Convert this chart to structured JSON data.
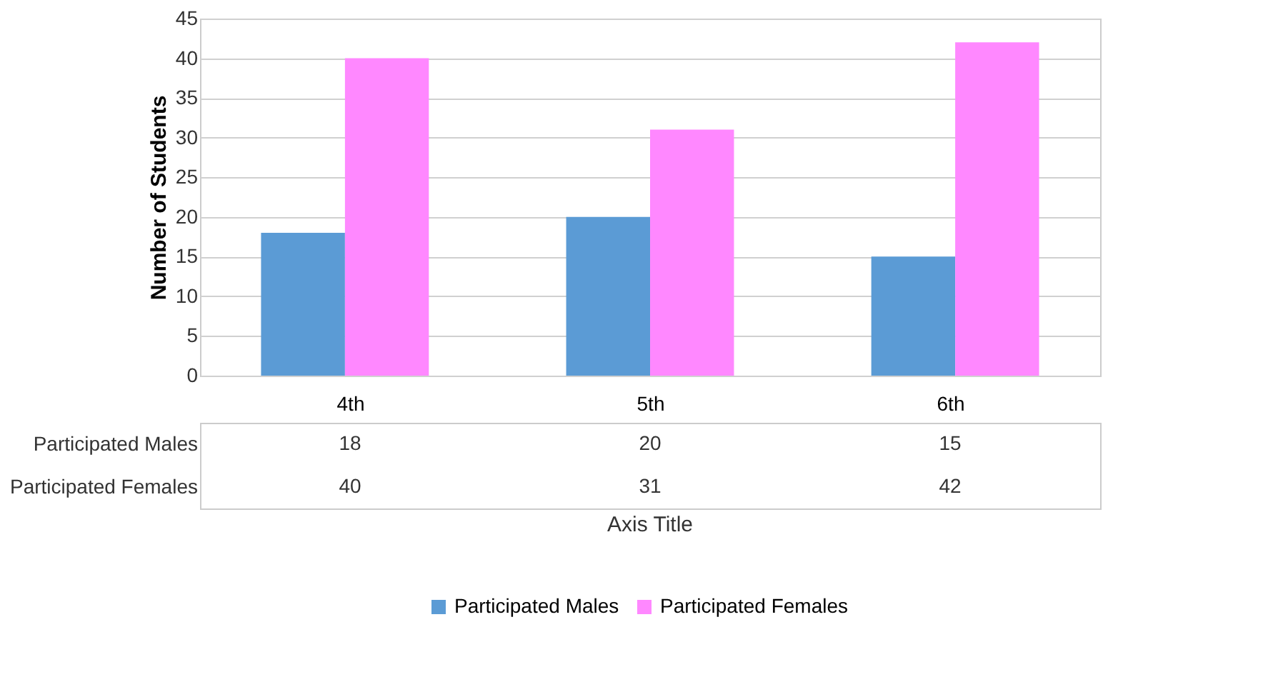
{
  "chart_data": {
    "type": "bar",
    "xlabel": "Axis Title",
    "ylabel": "Number of Students",
    "categories": [
      "4th",
      "5th",
      "6th"
    ],
    "series": [
      {
        "name": "Participated Males",
        "color": "#5b9bd5",
        "values": [
          18,
          20,
          15
        ]
      },
      {
        "name": "Participated Females",
        "color": "#ff88ff",
        "values": [
          40,
          31,
          42
        ]
      }
    ],
    "ylim": [
      0,
      45
    ],
    "yticks": [
      0,
      5,
      10,
      15,
      20,
      25,
      30,
      35,
      40,
      45
    ],
    "grid": "y",
    "legend": "bottom",
    "data_labels": true
  }
}
